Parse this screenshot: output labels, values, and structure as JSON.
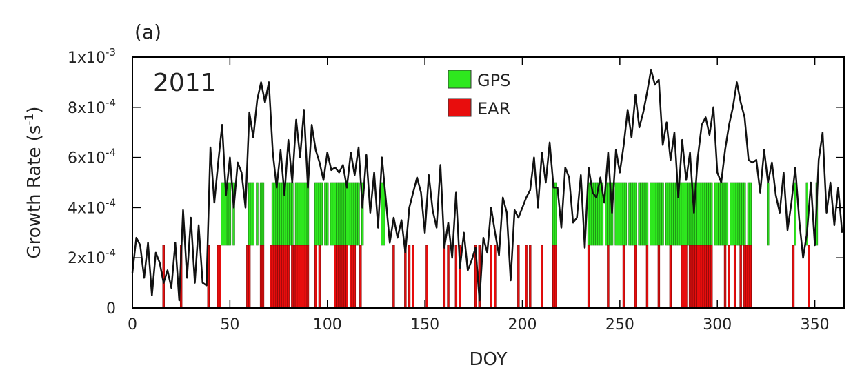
{
  "chart_data": {
    "type": "line",
    "panel_label": "(a)",
    "annotation": "2011",
    "xlabel": "DOY",
    "ylabel": {
      "text": "Growth Rate (s",
      "exponent": "-1",
      "end": ")"
    },
    "xlim": [
      0,
      365
    ],
    "xticks": [
      0,
      50,
      100,
      150,
      200,
      250,
      300,
      350
    ],
    "ylim": [
      0,
      0.001
    ],
    "yticks": [
      0,
      {
        "value": 0.0002,
        "label": "2x10",
        "exponent": "-4"
      },
      {
        "value": 0.0004,
        "label": "4x10",
        "exponent": "-4"
      },
      {
        "value": 0.0006,
        "label": "6x10",
        "exponent": "-4"
      },
      {
        "value": 0.0008,
        "label": "8x10",
        "exponent": "-4"
      },
      {
        "value": 0.001,
        "label": "1x10",
        "exponent": "-3"
      }
    ],
    "line_color": "#111111",
    "x": [
      0,
      2,
      4,
      6,
      8,
      10,
      12,
      14,
      16,
      18,
      20,
      22,
      24,
      26,
      28,
      30,
      32,
      34,
      36,
      38,
      40,
      42,
      44,
      46,
      48,
      50,
      52,
      54,
      56,
      58,
      60,
      62,
      64,
      66,
      68,
      70,
      72,
      74,
      76,
      78,
      80,
      82,
      84,
      86,
      88,
      90,
      92,
      94,
      96,
      98,
      100,
      102,
      104,
      106,
      108,
      110,
      112,
      114,
      116,
      118,
      120,
      122,
      124,
      126,
      128,
      130,
      132,
      134,
      136,
      138,
      140,
      142,
      144,
      146,
      148,
      150,
      152,
      154,
      156,
      158,
      160,
      162,
      164,
      166,
      168,
      170,
      172,
      174,
      176,
      178,
      180,
      182,
      184,
      186,
      188,
      190,
      192,
      194,
      196,
      198,
      200,
      202,
      204,
      206,
      208,
      210,
      212,
      214,
      216,
      218,
      220,
      222,
      224,
      226,
      228,
      230,
      232,
      234,
      236,
      238,
      240,
      242,
      244,
      246,
      248,
      250,
      252,
      254,
      256,
      258,
      260,
      262,
      264,
      266,
      268,
      270,
      272,
      274,
      276,
      278,
      280,
      282,
      284,
      286,
      288,
      290,
      292,
      294,
      296,
      298,
      300,
      302,
      304,
      306,
      308,
      310,
      312,
      314,
      316,
      318,
      320,
      322,
      324,
      326,
      328,
      330,
      332,
      334,
      336,
      338,
      340,
      342,
      344,
      346,
      348,
      350,
      352,
      354,
      356,
      358,
      360,
      362,
      364
    ],
    "values": [
      0.00014,
      0.00028,
      0.00025,
      0.00012,
      0.00026,
      5e-05,
      0.00022,
      0.00018,
      0.0001,
      0.00015,
      8e-05,
      0.00026,
      3e-05,
      0.00039,
      0.00012,
      0.00036,
      0.0001,
      0.00033,
      0.0001,
      9e-05,
      0.00064,
      0.00042,
      0.00058,
      0.00073,
      0.00045,
      0.0006,
      0.0004,
      0.00058,
      0.00054,
      0.0004,
      0.00078,
      0.00068,
      0.00083,
      0.0009,
      0.00082,
      0.0009,
      0.00062,
      0.00048,
      0.00063,
      0.00045,
      0.00067,
      0.0005,
      0.00075,
      0.0006,
      0.00079,
      0.00048,
      0.00073,
      0.00063,
      0.00058,
      0.00051,
      0.00062,
      0.00055,
      0.00056,
      0.00054,
      0.00057,
      0.00048,
      0.00062,
      0.00053,
      0.00064,
      0.0004,
      0.00061,
      0.00038,
      0.00054,
      0.00032,
      0.0006,
      0.00043,
      0.00026,
      0.00036,
      0.00028,
      0.00035,
      0.00022,
      0.0004,
      0.00046,
      0.00052,
      0.00046,
      0.0003,
      0.00053,
      0.00039,
      0.00032,
      0.00057,
      0.00024,
      0.00034,
      0.0002,
      0.00046,
      0.00016,
      0.0003,
      0.00015,
      0.00019,
      0.00024,
      3e-05,
      0.00028,
      0.00022,
      0.0004,
      0.0003,
      0.00021,
      0.00044,
      0.00038,
      0.00011,
      0.00039,
      0.00036,
      0.0004,
      0.00044,
      0.00047,
      0.0006,
      0.0004,
      0.00062,
      0.0005,
      0.00066,
      0.00048,
      0.00048,
      0.00032,
      0.00056,
      0.00052,
      0.00034,
      0.00036,
      0.00053,
      0.00024,
      0.00056,
      0.00046,
      0.00044,
      0.00052,
      0.00042,
      0.00062,
      0.00038,
      0.00063,
      0.00054,
      0.00065,
      0.00079,
      0.00068,
      0.00085,
      0.00072,
      0.00078,
      0.00086,
      0.00095,
      0.00089,
      0.00091,
      0.00065,
      0.00074,
      0.00059,
      0.0007,
      0.00044,
      0.00067,
      0.00051,
      0.00062,
      0.00038,
      0.0006,
      0.00073,
      0.00076,
      0.00069,
      0.0008,
      0.00054,
      0.0005,
      0.00063,
      0.00073,
      0.0008,
      0.0009,
      0.00082,
      0.00076,
      0.00059,
      0.00058,
      0.00059,
      0.00046,
      0.00063,
      0.0005,
      0.00058,
      0.00045,
      0.00038,
      0.00054,
      0.00031,
      0.00042,
      0.00056,
      0.00035,
      0.0002,
      0.0003,
      0.0005,
      0.00025,
      0.00059,
      0.0007,
      0.00038,
      0.0005,
      0.00033,
      0.00048,
      0.0003
    ],
    "day_series": [
      {
        "name": "GPS",
        "color": "#2ee81e",
        "edge": "#1a7a12",
        "range": [
          0.00025,
          0.0005
        ],
        "x": [
          46,
          47,
          48,
          49,
          50,
          52,
          60,
          61,
          62,
          64,
          66,
          67,
          72,
          73,
          74,
          75,
          76,
          77,
          78,
          79,
          80,
          81,
          82,
          84,
          85,
          86,
          87,
          88,
          89,
          90,
          94,
          95,
          96,
          97,
          99,
          100,
          102,
          103,
          104,
          105,
          106,
          107,
          108,
          109,
          110,
          111,
          112,
          113,
          114,
          115,
          116,
          118,
          128,
          129,
          216,
          217,
          234,
          235,
          236,
          237,
          238,
          239,
          240,
          241,
          243,
          244,
          245,
          246,
          248,
          249,
          250,
          251,
          252,
          253,
          255,
          256,
          257,
          258,
          260,
          261,
          262,
          263,
          264,
          266,
          267,
          268,
          269,
          270,
          271,
          272,
          274,
          275,
          276,
          277,
          278,
          279,
          280,
          281,
          282,
          283,
          284,
          285,
          286,
          287,
          288,
          289,
          290,
          291,
          292,
          293,
          294,
          295,
          296,
          297,
          299,
          300,
          301,
          302,
          303,
          304,
          305,
          307,
          308,
          309,
          310,
          311,
          312,
          313,
          314,
          316,
          317,
          326,
          340,
          346,
          351
        ]
      },
      {
        "name": "EAR",
        "color": "#e80d0d",
        "edge": "#7a0a0a",
        "range": [
          0,
          0.00025
        ],
        "x": [
          16,
          25,
          39,
          44,
          45,
          59,
          60,
          66,
          67,
          71,
          72,
          73,
          74,
          75,
          76,
          77,
          78,
          79,
          80,
          82,
          83,
          84,
          85,
          86,
          87,
          88,
          89,
          90,
          94,
          96,
          104,
          105,
          106,
          107,
          108,
          109,
          110,
          112,
          113,
          114,
          117,
          134,
          140,
          142,
          144,
          151,
          160,
          162,
          166,
          168,
          176,
          178,
          184,
          186,
          198,
          202,
          204,
          210,
          216,
          217,
          234,
          244,
          252,
          258,
          264,
          270,
          276,
          282,
          283,
          284,
          286,
          287,
          288,
          289,
          290,
          291,
          292,
          293,
          294,
          295,
          296,
          297,
          304,
          306,
          309,
          312,
          314,
          315,
          316,
          317,
          339,
          347
        ]
      }
    ]
  }
}
